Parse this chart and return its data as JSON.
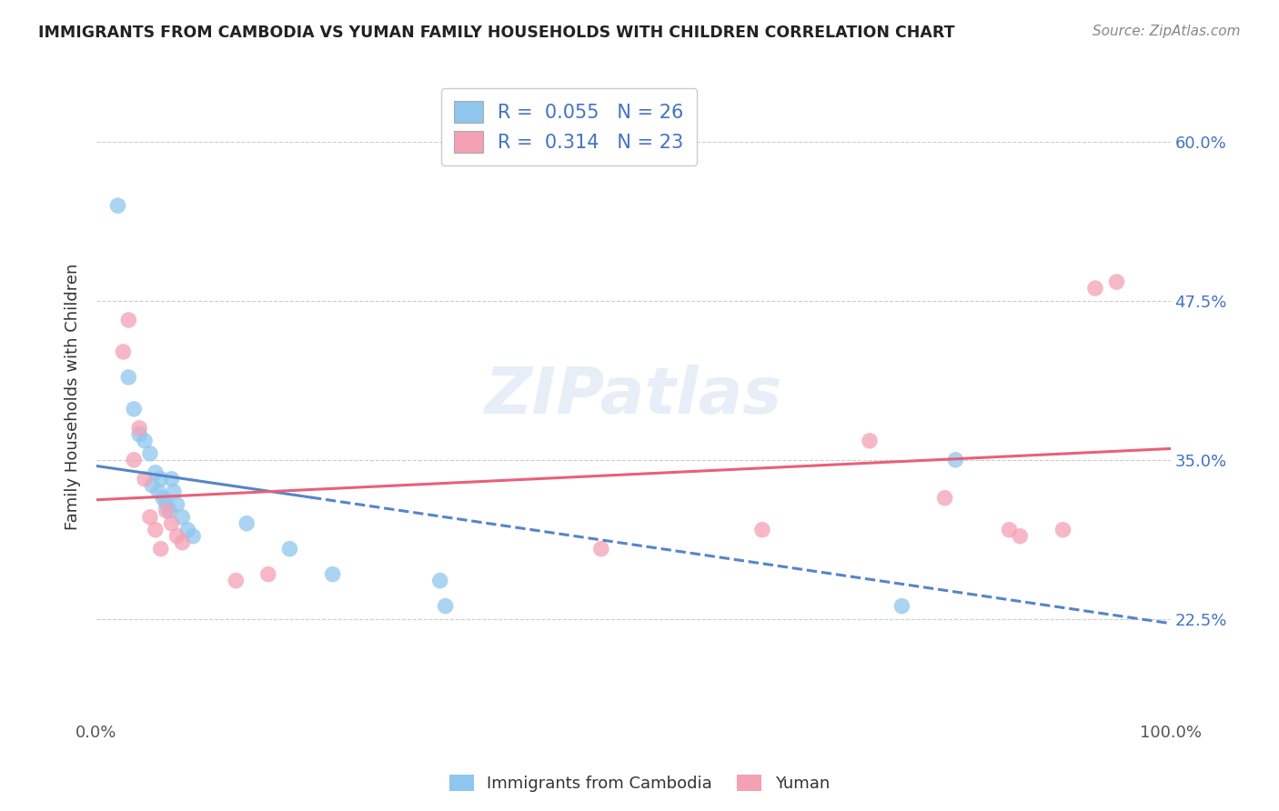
{
  "title": "IMMIGRANTS FROM CAMBODIA VS YUMAN FAMILY HOUSEHOLDS WITH CHILDREN CORRELATION CHART",
  "source": "Source: ZipAtlas.com",
  "ylabel": "Family Households with Children",
  "legend_label1": "Immigrants from Cambodia",
  "legend_label2": "Yuman",
  "r1": 0.055,
  "n1": 26,
  "r2": 0.314,
  "n2": 23,
  "xlim": [
    0,
    100
  ],
  "ylim": [
    15,
    65
  ],
  "yticks_right": [
    22.5,
    35.0,
    47.5,
    60.0
  ],
  "yticklabels_right": [
    "22.5%",
    "35.0%",
    "47.5%",
    "60.0%"
  ],
  "color1": "#8EC6EE",
  "color2": "#F4A0B5",
  "trendline1_color": "#5585C8",
  "trendline2_color": "#E8607A",
  "background": "#FFFFFF",
  "blue_points_x": [
    2.0,
    3.0,
    3.5,
    4.0,
    4.5,
    5.0,
    5.2,
    5.5,
    5.8,
    6.0,
    6.2,
    6.5,
    6.8,
    7.0,
    7.2,
    7.5,
    8.0,
    8.5,
    9.0,
    14.0,
    18.0,
    22.0,
    32.0,
    32.5,
    75.0,
    80.0
  ],
  "blue_points_y": [
    55.0,
    41.5,
    39.0,
    37.0,
    36.5,
    35.5,
    33.0,
    34.0,
    32.5,
    33.5,
    32.0,
    31.5,
    31.0,
    33.5,
    32.5,
    31.5,
    30.5,
    29.5,
    29.0,
    30.0,
    28.0,
    26.0,
    25.5,
    23.5,
    23.5,
    35.0
  ],
  "pink_points_x": [
    2.5,
    3.0,
    3.5,
    4.0,
    4.5,
    5.0,
    5.5,
    6.0,
    6.5,
    7.0,
    7.5,
    8.0,
    13.0,
    16.0,
    47.0,
    62.0,
    72.0,
    79.0,
    85.0,
    86.0,
    90.0,
    93.0,
    95.0
  ],
  "pink_points_y": [
    43.5,
    46.0,
    35.0,
    37.5,
    33.5,
    30.5,
    29.5,
    28.0,
    31.0,
    30.0,
    29.0,
    28.5,
    25.5,
    26.0,
    28.0,
    29.5,
    36.5,
    32.0,
    29.5,
    29.0,
    29.5,
    48.5,
    49.0
  ]
}
